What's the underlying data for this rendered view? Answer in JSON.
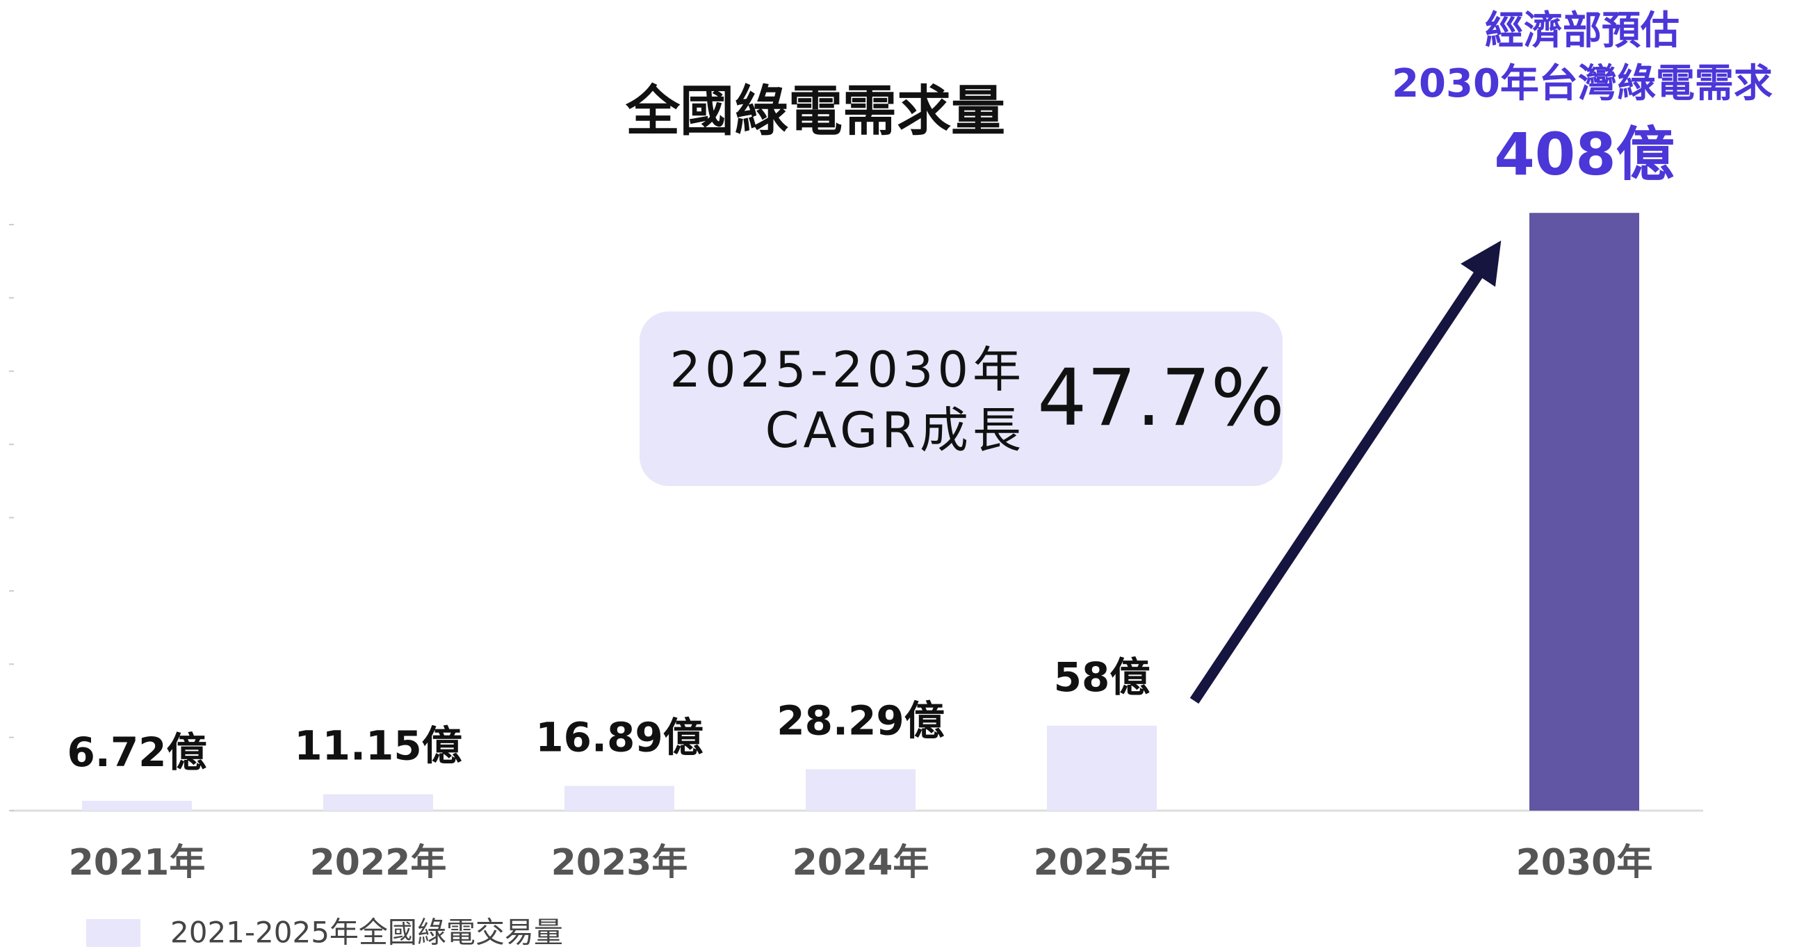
{
  "chart_data": {
    "type": "bar",
    "title": "全國綠電需求量",
    "categories": [
      "2021年",
      "2022年",
      "2023年",
      "2024年",
      "2025年",
      "2030年"
    ],
    "values": [
      6.72,
      11.15,
      16.89,
      28.29,
      58,
      408
    ],
    "value_labels": [
      "6.72億",
      "11.15億",
      "16.89億",
      "28.29億",
      "58億",
      "408億"
    ],
    "colors": [
      "#e8e6fa",
      "#e8e6fa",
      "#e8e6fa",
      "#e8e6fa",
      "#e8e6fa",
      "#6056a3"
    ],
    "ylim": [
      0,
      410
    ],
    "yticks": [
      0,
      50,
      100,
      150,
      200,
      250,
      300,
      350,
      400
    ],
    "legend": {
      "label": "2021-2025年全國綠電交易量",
      "color": "#e8e6fa"
    },
    "annotations": {
      "forecast": [
        "經濟部預估",
        "2030年台灣綠電需求"
      ],
      "cagr_label": [
        "2025-2030年",
        "CAGR成長"
      ],
      "cagr_value": "47.7%"
    }
  }
}
